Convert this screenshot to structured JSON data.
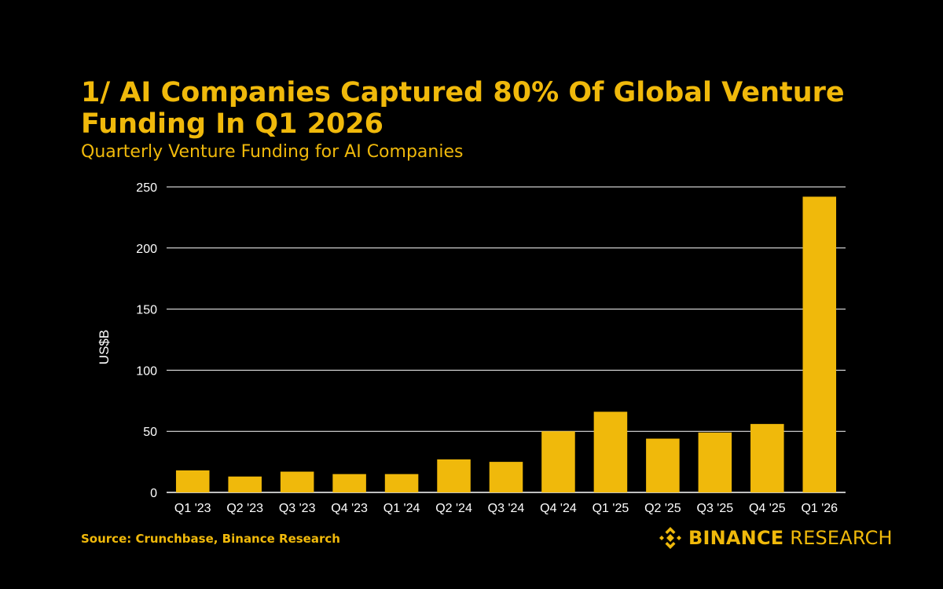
{
  "header": {
    "title": "1/ AI Companies Captured 80% Of Global Venture Funding In Q1 2026",
    "subtitle": "Quarterly Venture Funding for AI Companies"
  },
  "footer": {
    "source": "Source: Crunchbase, Binance Research",
    "brand_bold": "BINANCE",
    "brand_regular": "RESEARCH"
  },
  "colors": {
    "background": "#000000",
    "accent": "#F0B90B",
    "bar": "#F0B90B",
    "text": "#FFFFFF",
    "grid": "#FFFFFF"
  },
  "chart_data": {
    "type": "bar",
    "categories": [
      "Q1 '23",
      "Q2 '23",
      "Q3 '23",
      "Q4 '23",
      "Q1 '24",
      "Q2 '24",
      "Q3 '24",
      "Q4 '24",
      "Q1 '25",
      "Q2 '25",
      "Q3 '25",
      "Q4 '25",
      "Q1 '26"
    ],
    "values": [
      18,
      13,
      17,
      15,
      15,
      27,
      25,
      50,
      66,
      44,
      49,
      56,
      242
    ],
    "ylabel": "US$B",
    "ylim": [
      0,
      250
    ],
    "yticks": [
      0,
      50,
      100,
      150,
      200,
      250
    ],
    "grid": true,
    "legend": "none"
  }
}
